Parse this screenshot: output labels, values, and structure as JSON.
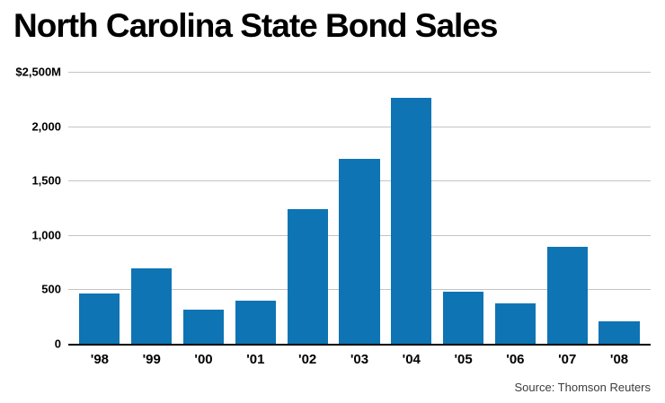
{
  "chart_data": {
    "type": "bar",
    "title": "North Carolina State Bond Sales",
    "categories": [
      "'98",
      "'99",
      "'00",
      "'01",
      "'02",
      "'03",
      "'04",
      "'05",
      "'06",
      "'07",
      "'08"
    ],
    "values": [
      460,
      690,
      310,
      400,
      1240,
      1700,
      2260,
      480,
      375,
      890,
      210
    ],
    "xlabel": "",
    "ylabel": "",
    "ylim": [
      0,
      2500
    ],
    "y_ticks": [
      {
        "label": "$2,500M",
        "value": 2500
      },
      {
        "label": "2,000",
        "value": 2000
      },
      {
        "label": "1,500",
        "value": 1500
      },
      {
        "label": "1,000",
        "value": 1000
      },
      {
        "label": "500",
        "value": 500
      },
      {
        "label": "0",
        "value": 0
      }
    ],
    "bar_color": "#0e74b4",
    "gridline_color": "#c4c4c4",
    "grid": "horizontal",
    "legend_position": "none",
    "source": "Source: Thomson Reuters"
  }
}
